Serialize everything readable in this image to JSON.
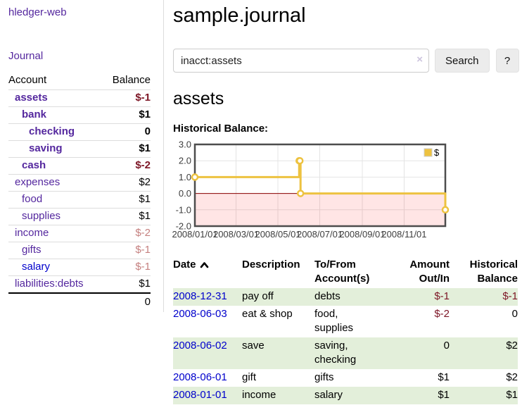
{
  "app": {
    "brand": "hledger-web",
    "nav_journal": "Journal"
  },
  "sidebar": {
    "account_header": "Account",
    "balance_header": "Balance",
    "rows": [
      {
        "account": "assets",
        "depth": 0,
        "bold": true,
        "balance": "$-1",
        "balance_tone": "neg-strong",
        "link_color": "purple"
      },
      {
        "account": "bank",
        "depth": 1,
        "bold": true,
        "balance": "$1",
        "balance_tone": "",
        "link_color": "purple"
      },
      {
        "account": "checking",
        "depth": 2,
        "bold": true,
        "balance": "0",
        "balance_tone": "",
        "link_color": "purple"
      },
      {
        "account": "saving",
        "depth": 2,
        "bold": true,
        "balance": "$1",
        "balance_tone": "",
        "link_color": "purple"
      },
      {
        "account": "cash",
        "depth": 1,
        "bold": true,
        "balance": "$-2",
        "balance_tone": "neg-strong",
        "link_color": "purple"
      },
      {
        "account": "expenses",
        "depth": 0,
        "bold": false,
        "balance": "$2",
        "balance_tone": "",
        "link_color": "purple"
      },
      {
        "account": "food",
        "depth": 1,
        "bold": false,
        "balance": "$1",
        "balance_tone": "",
        "link_color": "purple"
      },
      {
        "account": "supplies",
        "depth": 1,
        "bold": false,
        "balance": "$1",
        "balance_tone": "",
        "link_color": "purple"
      },
      {
        "account": "income",
        "depth": 0,
        "bold": false,
        "balance": "$-2",
        "balance_tone": "neg-soft",
        "link_color": "purple"
      },
      {
        "account": "gifts",
        "depth": 1,
        "bold": false,
        "balance": "$-1",
        "balance_tone": "neg-soft",
        "link_color": "purple"
      },
      {
        "account": "salary",
        "depth": 1,
        "bold": false,
        "balance": "$-1",
        "balance_tone": "neg-soft",
        "link_color": "blue"
      },
      {
        "account": "liabilities:debts",
        "depth": 0,
        "bold": false,
        "balance": "$1",
        "balance_tone": "",
        "link_color": "purple"
      }
    ],
    "total": "0"
  },
  "main": {
    "title": "sample.journal",
    "search": {
      "value": "inacct:assets",
      "clear_icon": "×",
      "button": "Search",
      "help_button": "?"
    },
    "account_heading": "assets"
  },
  "chart_data": {
    "type": "line",
    "title": "Historical Balance:",
    "steps": true,
    "xlim": [
      "2008-01-01",
      "2008-12-31"
    ],
    "ylim": [
      -2.0,
      3.0
    ],
    "yticks": [
      3.0,
      2.0,
      1.0,
      0.0,
      -1.0,
      -2.0
    ],
    "xtick_labels": [
      "2008/01/01",
      "2008/03/01",
      "2008/05/01",
      "2008/07/01",
      "2008/09/01",
      "2008/11/01"
    ],
    "xtick_dates": [
      "2008-01-01",
      "2008-03-01",
      "2008-05-01",
      "2008-07-01",
      "2008-09-01",
      "2008-11-01"
    ],
    "grid": true,
    "legend": {
      "label": "$",
      "position": "top-right"
    },
    "series": [
      {
        "name": "$",
        "color": "#edc240",
        "points": [
          [
            "2008-01-01",
            1
          ],
          [
            "2008-06-01",
            2
          ],
          [
            "2008-06-02",
            2
          ],
          [
            "2008-06-03",
            0
          ],
          [
            "2008-12-31",
            -1
          ]
        ]
      }
    ],
    "negative_region": {
      "from": 0,
      "to": -2,
      "fill": "rgba(255,0,0,0.10)",
      "line_color": "#8b0000"
    }
  },
  "register": {
    "headers": {
      "date": "Date",
      "description": "Description",
      "accounts": "To/From Account(s)",
      "amount": "Amount Out/In",
      "balance": "Historical Balance"
    },
    "sort": "ascending",
    "rows": [
      {
        "date": "2008-12-31",
        "description": "pay off",
        "accounts": "debts",
        "amount": "$-1",
        "amount_negative": true,
        "balance": "$-1",
        "balance_negative": true
      },
      {
        "date": "2008-06-03",
        "description": "eat & shop",
        "accounts": "food, supplies",
        "amount": "$-2",
        "amount_negative": true,
        "balance": "0",
        "balance_negative": false
      },
      {
        "date": "2008-06-02",
        "description": "save",
        "accounts": "saving, checking",
        "amount": "0",
        "amount_negative": false,
        "balance": "$2",
        "balance_negative": false
      },
      {
        "date": "2008-06-01",
        "description": "gift",
        "accounts": "gifts",
        "amount": "$1",
        "amount_negative": false,
        "balance": "$2",
        "balance_negative": false
      },
      {
        "date": "2008-01-01",
        "description": "income",
        "accounts": "salary",
        "amount": "$1",
        "amount_negative": false,
        "balance": "$1",
        "balance_negative": false
      }
    ]
  },
  "colors": {
    "link_purple": "#54279e",
    "link_blue": "#0000cc",
    "negative_strong": "#7d1626",
    "negative_soft": "#c5807f",
    "row_highlight_green": "#e3efda",
    "chart_line_gold": "#edc240",
    "chart_zero_line_red": "#8b0000",
    "chart_negative_fill": "rgba(255,0,0,0.10)",
    "chart_grid": "#e4e4e4",
    "chart_border": "#4d4d4d"
  }
}
